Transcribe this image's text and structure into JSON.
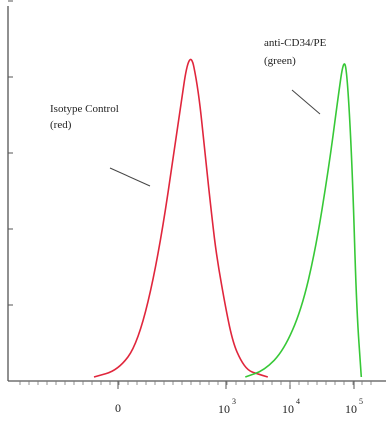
{
  "chart_data": {
    "type": "line",
    "title": "",
    "xlabel": "",
    "ylabel": "",
    "x_scale": "biexponential",
    "xlim": [
      -500,
      150000
    ],
    "ylim": [
      0,
      1
    ],
    "grid": false,
    "legend": "none",
    "x_tick_labels": [
      {
        "value": 0,
        "base": "0",
        "sup": ""
      },
      {
        "value": 1000,
        "base": "10",
        "sup": "3"
      },
      {
        "value": 10000,
        "base": "10",
        "sup": "4"
      },
      {
        "value": 100000,
        "base": "10",
        "sup": "5"
      }
    ],
    "series": [
      {
        "color": "#e0263c",
        "x": [
          -300,
          0,
          100,
          200,
          300,
          400,
          500,
          600,
          700,
          800,
          1000,
          1300,
          1700,
          2200,
          3000,
          4500
        ],
        "y": [
          0.0,
          0.02,
          0.1,
          0.35,
          0.75,
          0.99,
          0.86,
          0.65,
          0.48,
          0.35,
          0.2,
          0.1,
          0.05,
          0.02,
          0.01,
          0.0
        ]
      },
      {
        "color": "#37c837",
        "x": [
          2000,
          4000,
          8000,
          15000,
          25000,
          40000,
          55000,
          70000,
          80000,
          95000,
          110000,
          130000
        ],
        "y": [
          0.0,
          0.02,
          0.08,
          0.2,
          0.38,
          0.62,
          0.82,
          0.96,
          0.88,
          0.6,
          0.2,
          0.0
        ]
      }
    ],
    "annotations": [
      {
        "lines": [
          "Isotype Control",
          "(red)"
        ]
      },
      {
        "lines": [
          "anti-CD34/PE",
          "(green)"
        ]
      }
    ]
  }
}
